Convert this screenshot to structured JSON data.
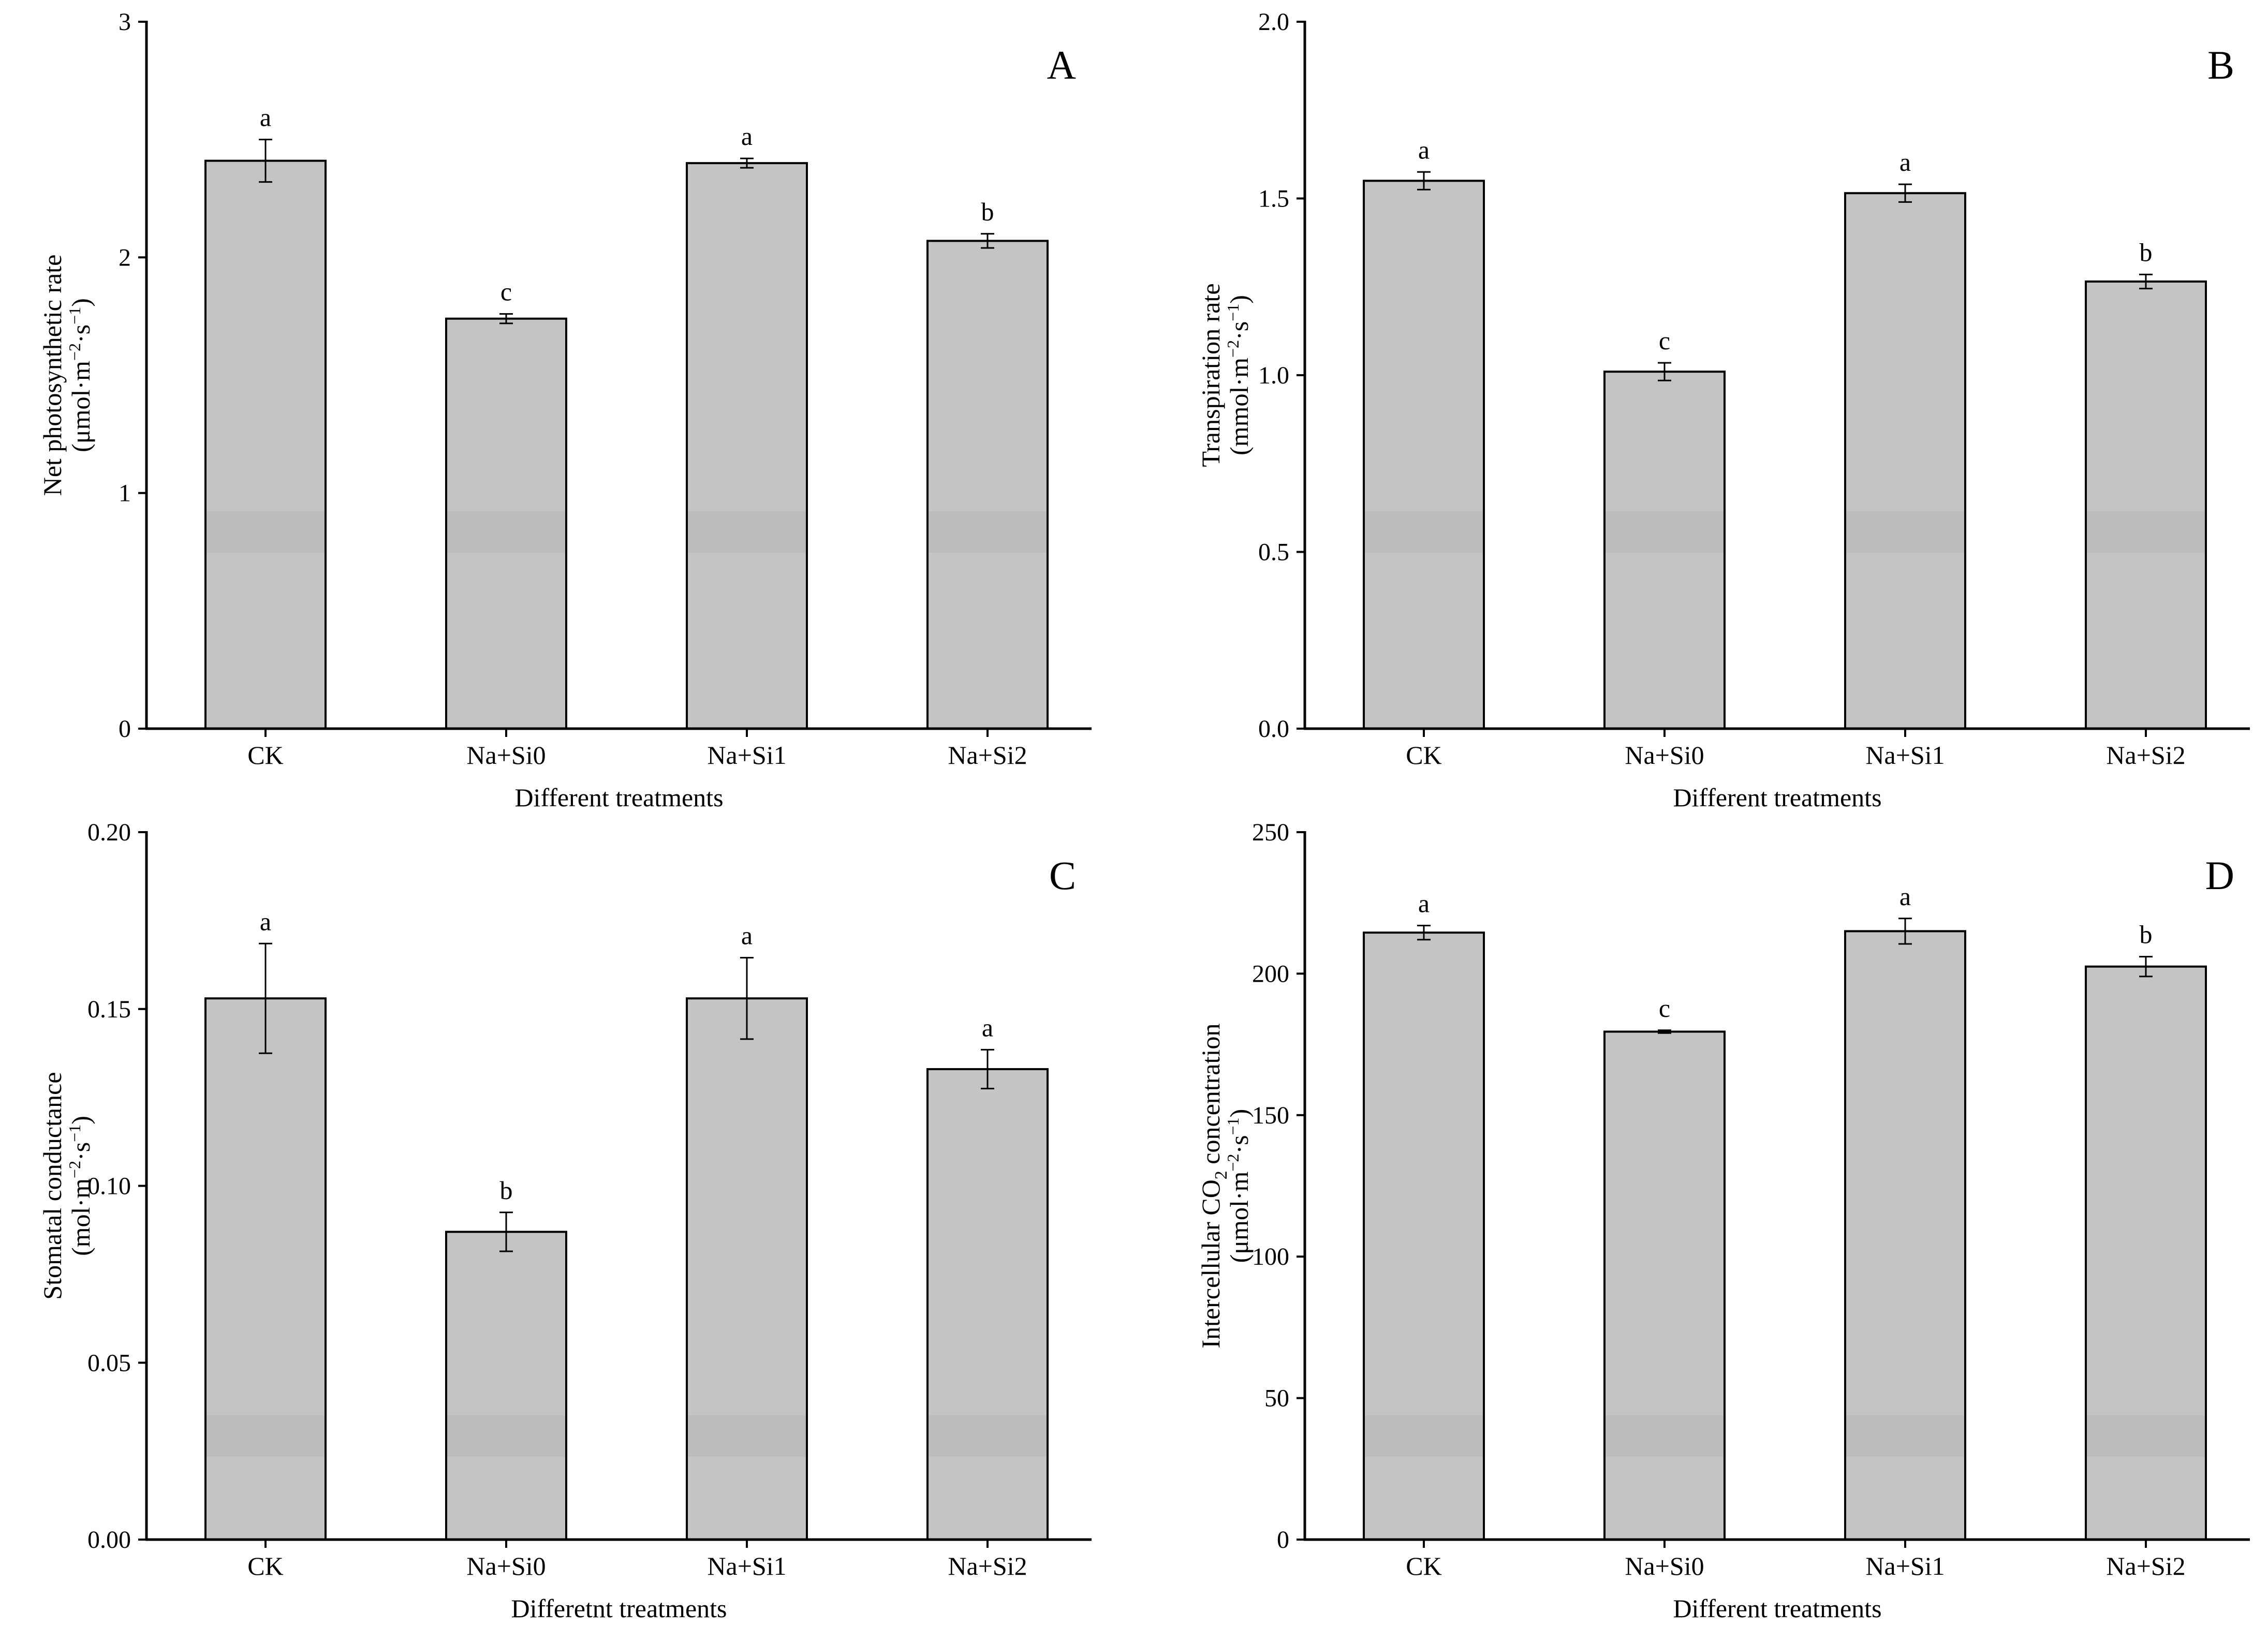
{
  "figure": {
    "bar_fill": "#c4c4c4",
    "bar_band_color": "#b8b8b8",
    "bar_stroke": "#000000",
    "axis_color": "#000000"
  },
  "chart_data": [
    {
      "type": "bar",
      "panel": "A",
      "categories": [
        "CK",
        "Na+Si0",
        "Na+Si1",
        "Na+Si2"
      ],
      "values": [
        2.41,
        1.74,
        2.4,
        2.07
      ],
      "errors": [
        0.09,
        0.02,
        0.02,
        0.03
      ],
      "significance": [
        "a",
        "c",
        "a",
        "b"
      ],
      "ylim": [
        0,
        3
      ],
      "yticks": [
        0,
        1,
        2,
        3
      ],
      "ytick_labels": [
        "0",
        "1",
        "2",
        "3"
      ],
      "xlabel": "Different treatments",
      "ylabel_line1": "Net photosynthetic rate",
      "ylabel_line2": {
        "pre": "(μmol·m",
        "sup1": "−2",
        "mid": "·s",
        "sup2": "−1",
        "post": ")"
      }
    },
    {
      "type": "bar",
      "panel": "B",
      "categories": [
        "CK",
        "Na+Si0",
        "Na+Si1",
        "Na+Si2"
      ],
      "values": [
        1.55,
        1.01,
        1.515,
        1.265
      ],
      "errors": [
        0.025,
        0.025,
        0.025,
        0.02
      ],
      "significance": [
        "a",
        "c",
        "a",
        "b"
      ],
      "ylim": [
        0,
        2
      ],
      "yticks": [
        0,
        0.5,
        1,
        1.5,
        2
      ],
      "ytick_labels": [
        "0.0",
        "0.5",
        "1.0",
        "1.5",
        "2.0"
      ],
      "xlabel": "Different treatments",
      "ylabel_line1": "Transpiration rate",
      "ylabel_line2": {
        "pre": "(mmol·m",
        "sup1": "−2",
        "mid": "·s",
        "sup2": "−1",
        "post": ")"
      }
    },
    {
      "type": "bar",
      "panel": "C",
      "categories": [
        "CK",
        "Na+Si0",
        "Na+Si1",
        "Na+Si2"
      ],
      "values": [
        0.153,
        0.087,
        0.153,
        0.133
      ],
      "errors": [
        0.0155,
        0.0055,
        0.0115,
        0.0055
      ],
      "significance": [
        "a",
        "b",
        "a",
        "a"
      ],
      "ylim": [
        0,
        0.2
      ],
      "yticks": [
        0,
        0.05,
        0.1,
        0.15,
        0.2
      ],
      "ytick_labels": [
        "0.00",
        "0.05",
        "0.10",
        "0.15",
        "0.20"
      ],
      "xlabel": "Differetnt treatments",
      "ylabel_line1": "Stomatal conductance",
      "ylabel_line2": {
        "pre": "(mol·m",
        "sup1": "−2",
        "mid": "·s",
        "sup2": "−1",
        "post": ")"
      }
    },
    {
      "type": "bar",
      "panel": "D",
      "categories": [
        "CK",
        "Na+Si0",
        "Na+Si1",
        "Na+Si2"
      ],
      "values": [
        214.5,
        179.5,
        215,
        202.5
      ],
      "errors": [
        2.5,
        0.5,
        4.5,
        3.5
      ],
      "significance": [
        "a",
        "c",
        "a",
        "b"
      ],
      "ylim": [
        0,
        250
      ],
      "yticks": [
        0,
        50,
        100,
        150,
        200,
        250
      ],
      "ytick_labels": [
        "0",
        "50",
        "100",
        "150",
        "200",
        "250"
      ],
      "xlabel": "Different treatments",
      "ylabel_line1": {
        "pre": "Intercellular CO",
        "sub": "2",
        "post": " concentration"
      },
      "ylabel_line2": {
        "pre": "(μmol·m",
        "sup1": "−2",
        "mid": "·s",
        "sup2": "−1",
        "post": ")"
      }
    }
  ]
}
